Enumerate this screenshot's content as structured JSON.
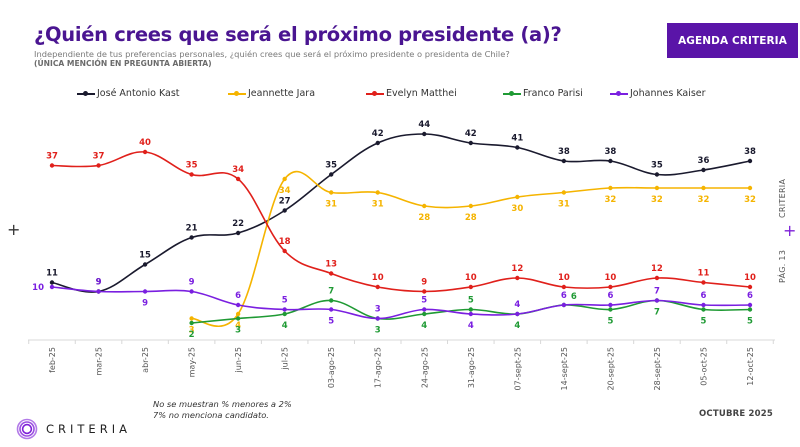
{
  "header": {
    "title": "¿Quién crees que será el próximo presidente (a)?",
    "subtitle": "Independiente de tus preferencias personales, ¿quién crees que será el próximo presidente o presidenta de Chile?",
    "subtitle_note": "(ÚNICA MENCIÓN EN PREGUNTA ABIERTA)",
    "agenda_button": "AGENDA CRITERIA"
  },
  "side": {
    "brand": "CRITERIA",
    "page": "PÁG. 13",
    "plus": "+"
  },
  "footer": {
    "note1": "No se muestran % menores a 2%",
    "note2": "7% no menciona candidato.",
    "logo_text": "CRITERIA",
    "date": "OCTUBRE 2025"
  },
  "chart_data": {
    "type": "line",
    "title": "¿Quién crees que será el próximo presidente (a)?",
    "xlabel": "",
    "ylabel": "",
    "ylim": [
      0,
      46
    ],
    "grid": false,
    "legend_position": "top",
    "categories": [
      "feb-25",
      "mar-25",
      "abr-25",
      "may-25",
      "jun-25",
      "jul-25",
      "03-ago-25",
      "17-ago-25",
      "24-ago-25",
      "31-ago-25",
      "07-sept-25",
      "14-sept-25",
      "20-sept-25",
      "28-sept-25",
      "05-oct-25",
      "12-oct-25"
    ],
    "series": [
      {
        "name": "José Antonio Kast",
        "color": "#1a1a2e",
        "values": [
          11,
          9,
          15,
          21,
          22,
          27,
          35,
          42,
          44,
          42,
          41,
          38,
          38,
          35,
          36,
          38
        ],
        "label_pos": "above"
      },
      {
        "name": "Jeannette Jara",
        "color": "#f5b400",
        "values": [
          null,
          null,
          null,
          3,
          4,
          34,
          31,
          31,
          28,
          28,
          30,
          31,
          32,
          32,
          32,
          32
        ],
        "label_pos": "below"
      },
      {
        "name": "Evelyn Matthei",
        "color": "#e0201b",
        "values": [
          37,
          37,
          40,
          35,
          34,
          18,
          13,
          10,
          9,
          10,
          12,
          10,
          10,
          12,
          11,
          10
        ],
        "label_pos": "above"
      },
      {
        "name": "Franco Parisi",
        "color": "#1f9a34",
        "values": [
          null,
          null,
          null,
          2,
          3,
          4,
          7,
          3,
          4,
          5,
          4,
          6,
          5,
          7,
          5,
          5
        ],
        "label_pos": "mixed"
      },
      {
        "name": "Johannes Kaiser",
        "color": "#7a1fe0",
        "values": [
          10,
          9,
          9,
          9,
          6,
          5,
          5,
          3,
          5,
          4,
          4,
          6,
          6,
          7,
          6,
          6
        ],
        "label_pos": "mixed"
      }
    ]
  }
}
